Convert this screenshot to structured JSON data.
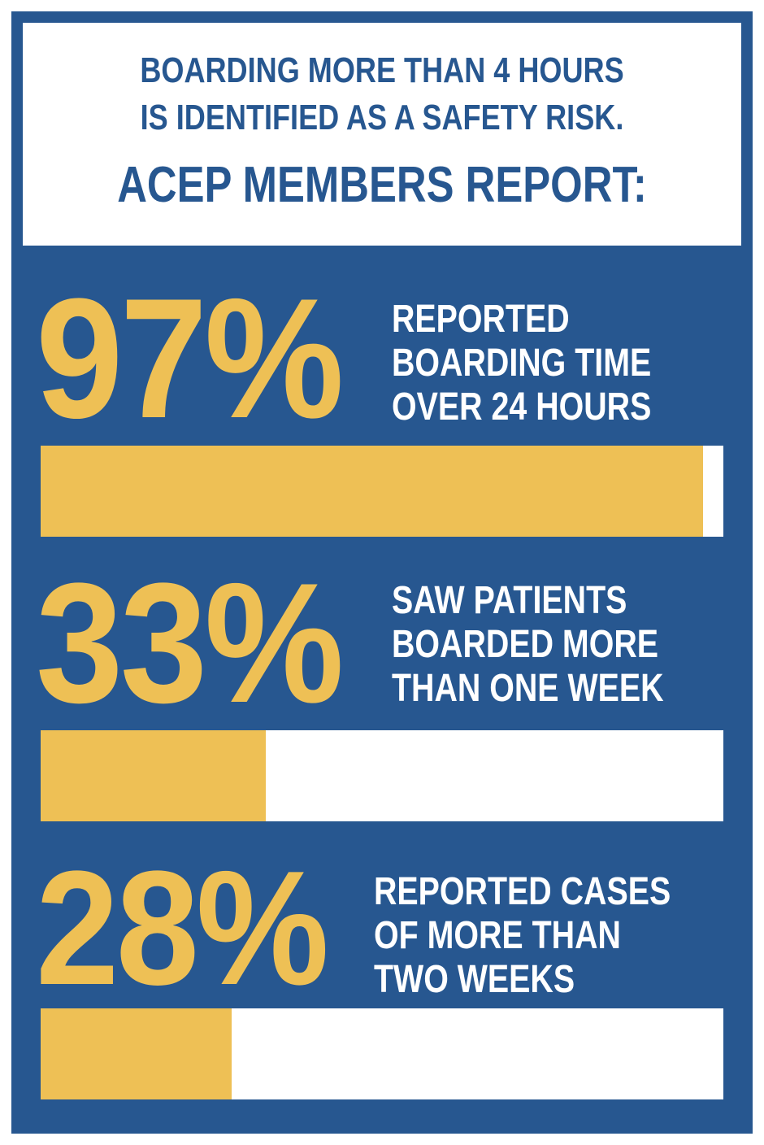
{
  "header": {
    "line1": "BOARDING MORE THAN 4 HOURS",
    "line2": "IS IDENTIFIED AS A SAFETY RISK.",
    "line3": "ACEP MEMBERS REPORT:"
  },
  "chart_data": {
    "type": "bar",
    "title": "",
    "xlabel": "",
    "ylabel": "",
    "xlim": [
      0,
      100
    ],
    "categories": [
      "REPORTED BOARDING TIME OVER 24 HOURS",
      "SAW PATIENTS BOARDED MORE THAN ONE WEEK",
      "REPORTED CASES OF MORE THAN TWO WEEKS"
    ],
    "values": [
      97,
      33,
      28
    ],
    "items": [
      {
        "percent_label": "97%",
        "value": 97,
        "label_lines": [
          "REPORTED",
          "BOARDING TIME",
          "OVER 24 HOURS"
        ]
      },
      {
        "percent_label": "33%",
        "value": 33,
        "label_lines": [
          "SAW PATIENTS",
          "BOARDED MORE",
          "THAN ONE WEEK"
        ]
      },
      {
        "percent_label": "28%",
        "value": 28,
        "label_lines": [
          "REPORTED CASES",
          "OF MORE THAN",
          "TWO WEEKS"
        ]
      }
    ]
  },
  "colors": {
    "background_blue": "#275790",
    "accent_yellow": "#eec055",
    "white": "#ffffff"
  }
}
